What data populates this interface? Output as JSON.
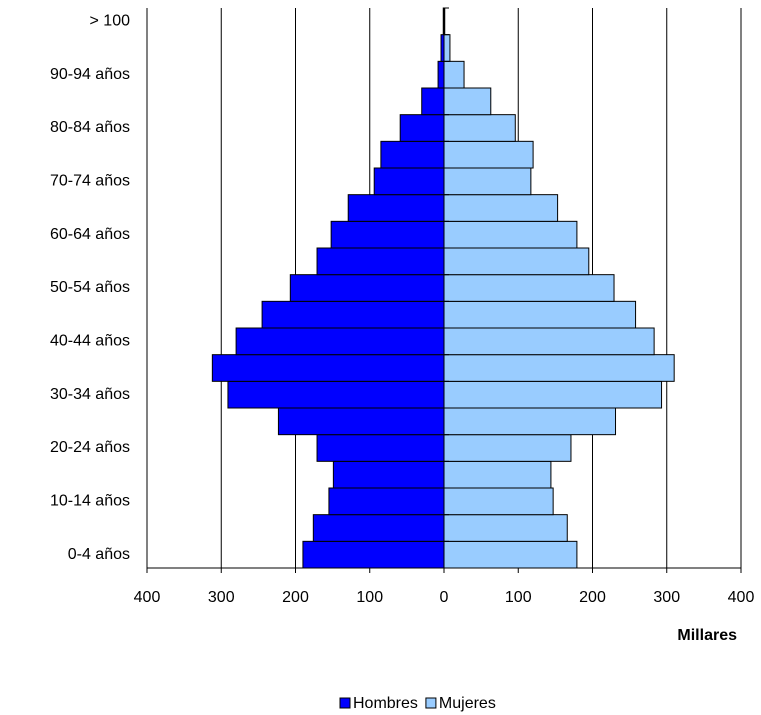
{
  "chart_data": {
    "type": "pyramid",
    "categories": [
      "0-4 años",
      null,
      "10-14 años",
      null,
      "20-24 años",
      null,
      "30-34 años",
      null,
      "40-44 años",
      null,
      "50-54 años",
      null,
      "60-64 años",
      null,
      "70-74 años",
      null,
      "80-84 años",
      null,
      "90-94 años",
      null,
      "> 100"
    ],
    "series": [
      {
        "name": "Hombres",
        "color": "#0000ff",
        "side": "left",
        "values": [
          190,
          176,
          155,
          149,
          171,
          223,
          291,
          312,
          280,
          245,
          207,
          171,
          152,
          129,
          94,
          85,
          59,
          30,
          8,
          4,
          1
        ]
      },
      {
        "name": "Mujeres",
        "color": "#99ccff",
        "side": "right",
        "values": [
          179,
          166,
          147,
          144,
          171,
          231,
          293,
          310,
          283,
          258,
          229,
          195,
          179,
          153,
          117,
          120,
          96,
          63,
          27,
          8,
          1
        ]
      }
    ],
    "xlim": [
      -400,
      400
    ],
    "xticks": [
      {
        "value": -400,
        "label": "400"
      },
      {
        "value": -300,
        "label": "300"
      },
      {
        "value": -200,
        "label": "200"
      },
      {
        "value": -100,
        "label": "100"
      },
      0,
      100,
      200,
      300,
      400
    ],
    "xlabel": "Millares",
    "grid": true,
    "legend": "bottom"
  }
}
